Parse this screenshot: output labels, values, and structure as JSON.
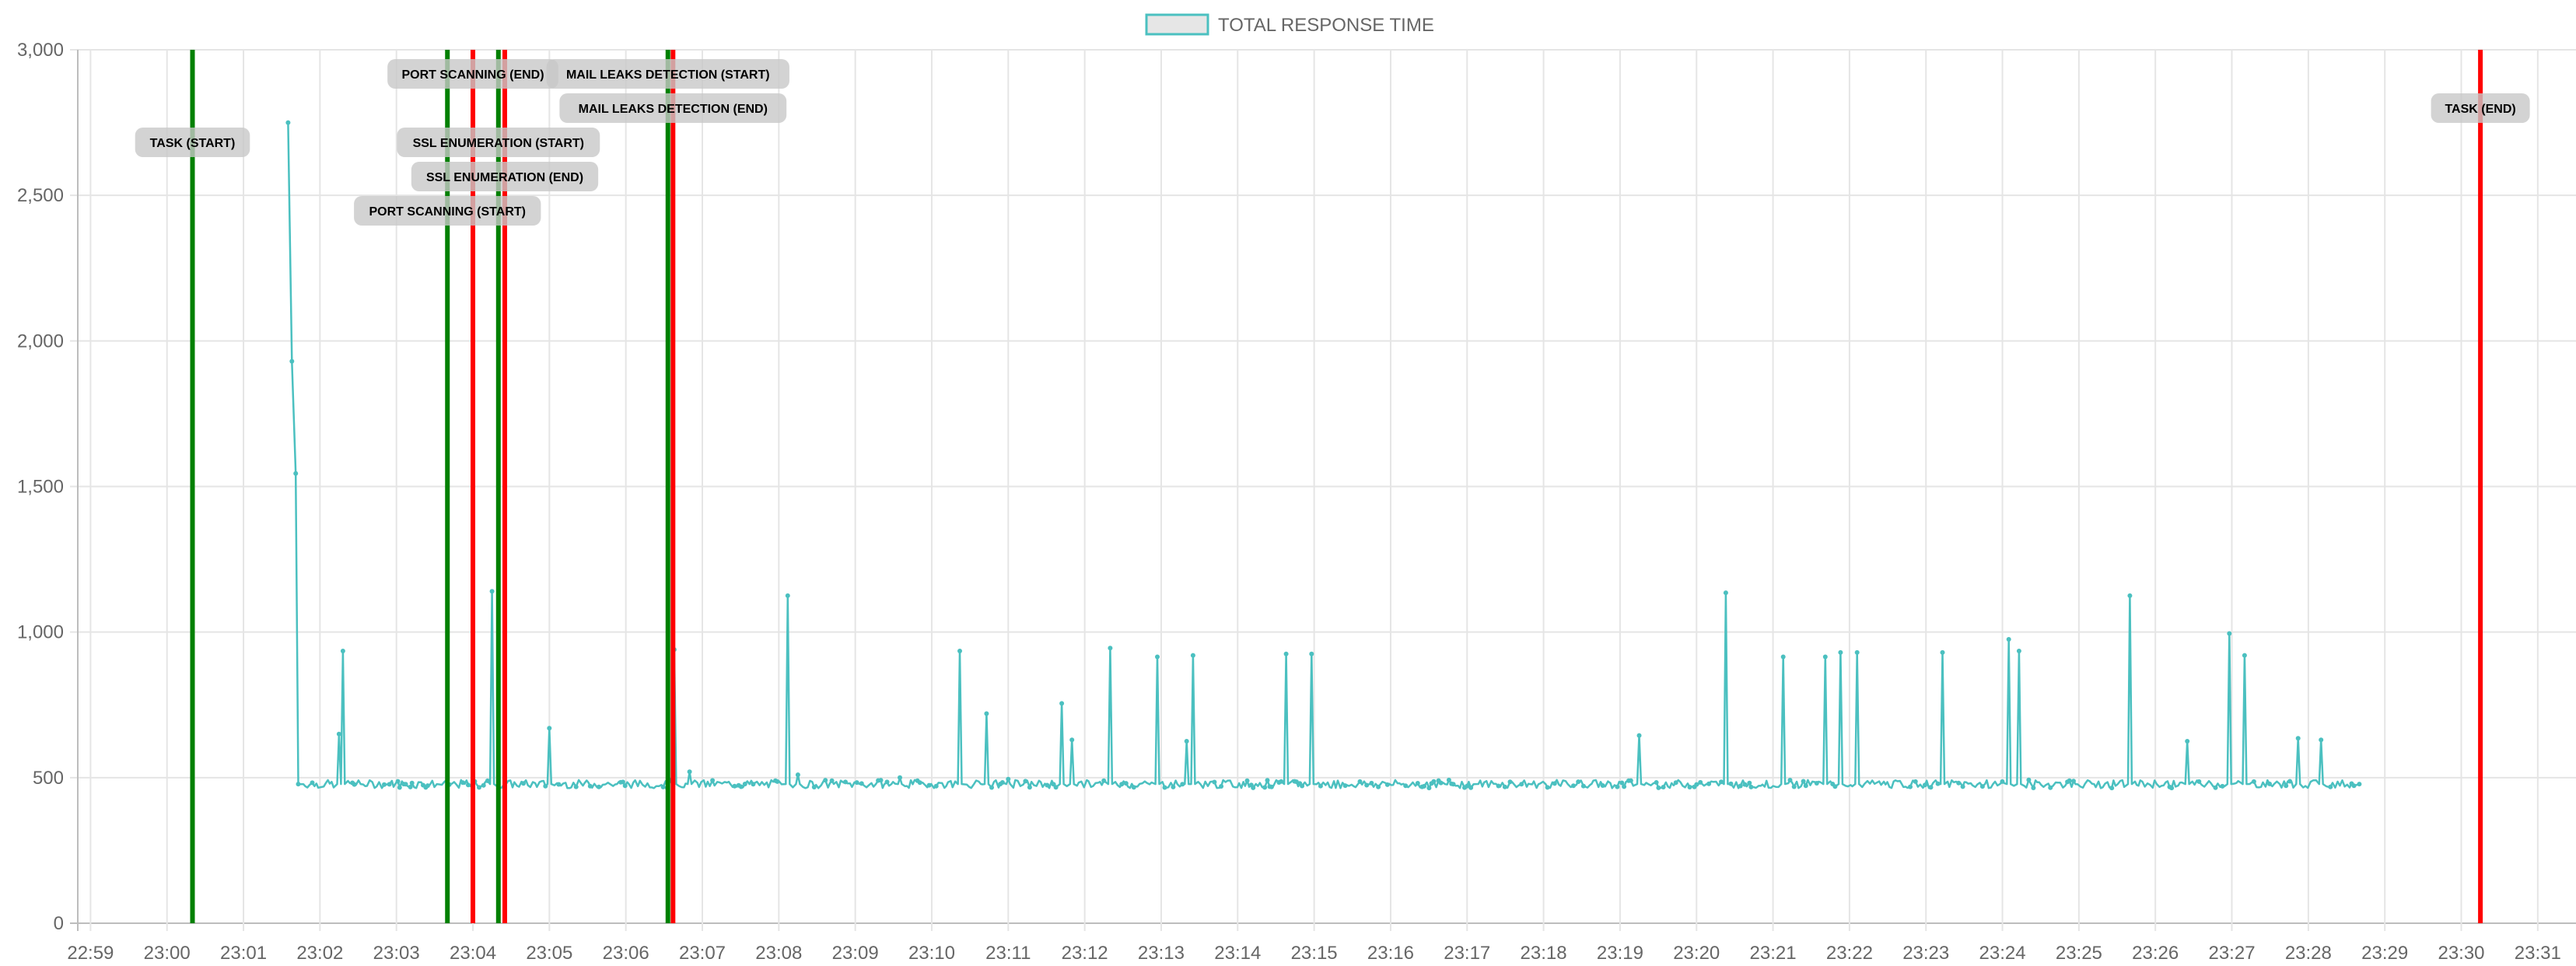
{
  "chart_data": {
    "type": "line",
    "title": "",
    "xlabel": "",
    "ylabel": "",
    "legend": {
      "position": "top-center",
      "label": "TOTAL RESPONSE TIME"
    },
    "series": [
      {
        "name": "TOTAL RESPONSE TIME",
        "color": "#4bc0c0",
        "fill": "#e6e6e6",
        "baseline": 478,
        "x_start": "23:01:43",
        "x_end": "23:28:40",
        "points": [
          {
            "x": "23:01:35",
            "y": 2750
          },
          {
            "x": "23:01:38",
            "y": 1930
          },
          {
            "x": "23:01:41",
            "y": 1545
          },
          {
            "x": "23:01:43",
            "y": 478
          },
          {
            "x": "23:02:15",
            "y": 650
          },
          {
            "x": "23:02:18",
            "y": 935
          },
          {
            "x": "23:04:15",
            "y": 1140
          },
          {
            "x": "23:05:00",
            "y": 670
          },
          {
            "x": "23:06:38",
            "y": 940
          },
          {
            "x": "23:06:50",
            "y": 520
          },
          {
            "x": "23:08:07",
            "y": 1125
          },
          {
            "x": "23:08:15",
            "y": 510
          },
          {
            "x": "23:09:35",
            "y": 500
          },
          {
            "x": "23:10:22",
            "y": 935
          },
          {
            "x": "23:10:43",
            "y": 720
          },
          {
            "x": "23:11:00",
            "y": 495
          },
          {
            "x": "23:11:42",
            "y": 755
          },
          {
            "x": "23:11:50",
            "y": 630
          },
          {
            "x": "23:12:20",
            "y": 945
          },
          {
            "x": "23:12:57",
            "y": 915
          },
          {
            "x": "23:13:20",
            "y": 625
          },
          {
            "x": "23:13:25",
            "y": 920
          },
          {
            "x": "23:14:38",
            "y": 925
          },
          {
            "x": "23:14:58",
            "y": 925
          },
          {
            "x": "23:19:15",
            "y": 645
          },
          {
            "x": "23:20:23",
            "y": 1135
          },
          {
            "x": "23:21:08",
            "y": 915
          },
          {
            "x": "23:21:41",
            "y": 915
          },
          {
            "x": "23:21:53",
            "y": 930
          },
          {
            "x": "23:22:06",
            "y": 930
          },
          {
            "x": "23:23:13",
            "y": 930
          },
          {
            "x": "23:24:05",
            "y": 975
          },
          {
            "x": "23:24:13",
            "y": 935
          },
          {
            "x": "23:25:40",
            "y": 1125
          },
          {
            "x": "23:26:25",
            "y": 625
          },
          {
            "x": "23:26:58",
            "y": 995
          },
          {
            "x": "23:27:10",
            "y": 920
          },
          {
            "x": "23:27:52",
            "y": 635
          },
          {
            "x": "23:28:10",
            "y": 630
          },
          {
            "x": "23:28:40",
            "y": 478
          }
        ]
      }
    ],
    "y_axis": {
      "min": 0,
      "max": 3000,
      "ticks": [
        "0",
        "500",
        "1,000",
        "1,500",
        "2,000",
        "2,500",
        "3,000"
      ],
      "tick_values": [
        0,
        500,
        1000,
        1500,
        2000,
        2500,
        3000
      ]
    },
    "x_axis": {
      "min": "22:58:50",
      "max": "23:31:30",
      "ticks": [
        "22:59",
        "23:00",
        "23:01",
        "23:02",
        "23:03",
        "23:04",
        "23:05",
        "23:06",
        "23:07",
        "23:08",
        "23:09",
        "23:10",
        "23:11",
        "23:12",
        "23:13",
        "23:14",
        "23:15",
        "23:16",
        "23:17",
        "23:18",
        "23:19",
        "23:20",
        "23:21",
        "23:22",
        "23:23",
        "23:24",
        "23:25",
        "23:26",
        "23:27",
        "23:28",
        "23:29",
        "23:30",
        "23:31"
      ]
    },
    "grid": true,
    "event_markers": [
      {
        "time": "23:00:20",
        "color": "#008000",
        "label": "TASK (START)",
        "label_level": 2
      },
      {
        "time": "23:03:40",
        "color": "#008000",
        "label": "PORT SCANNING (START)",
        "label_level": 4
      },
      {
        "time": "23:04:00",
        "color": "#ff0000",
        "label": "PORT SCANNING (END)",
        "label_level": 0
      },
      {
        "time": "23:04:20",
        "color": "#008000",
        "label": "SSL ENUMERATION (START)",
        "label_level": 2
      },
      {
        "time": "23:04:25",
        "color": "#ff0000",
        "label": "SSL ENUMERATION (END)",
        "label_level": 3
      },
      {
        "time": "23:06:33",
        "color": "#008000",
        "label": "MAIL LEAKS DETECTION (START)",
        "label_level": 0
      },
      {
        "time": "23:06:37",
        "color": "#ff0000",
        "label": "MAIL LEAKS DETECTION (END)",
        "label_level": 1
      },
      {
        "time": "23:30:15",
        "color": "#ff0000",
        "label": "TASK (END)",
        "label_level": 1
      }
    ]
  }
}
